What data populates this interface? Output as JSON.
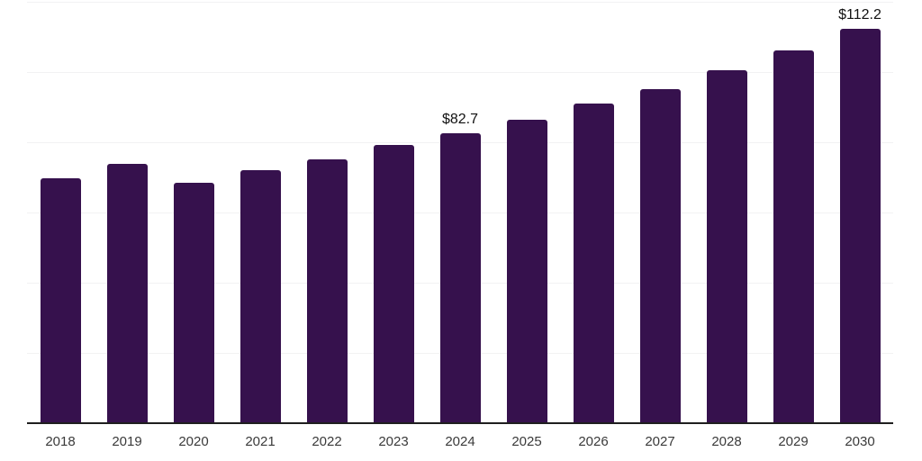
{
  "chart_data": {
    "type": "bar",
    "title": "",
    "categories": [
      "2018",
      "2019",
      "2020",
      "2021",
      "2022",
      "2023",
      "2024",
      "2025",
      "2026",
      "2027",
      "2028",
      "2029",
      "2030"
    ],
    "values": [
      69.8,
      73.8,
      68.4,
      72.0,
      75.2,
      79.2,
      82.7,
      86.5,
      91.1,
      95.2,
      100.5,
      106.1,
      112.2
    ],
    "data_labels": [
      "",
      "",
      "",
      "",
      "",
      "",
      "$82.7",
      "",
      "",
      "",
      "",
      "",
      "$112.2"
    ],
    "xlabel": "",
    "ylabel": "",
    "ylim": [
      0,
      120
    ],
    "gridline_step": 20,
    "grid": "horizontal",
    "legend_position": "none",
    "colors": {
      "bar": "#36114d",
      "gridline": "#f2f2f3",
      "axis_line": "#1f1f1f",
      "tick_label": "#3a3a3a",
      "data_label": "#111111",
      "background": "#ffffff"
    }
  }
}
